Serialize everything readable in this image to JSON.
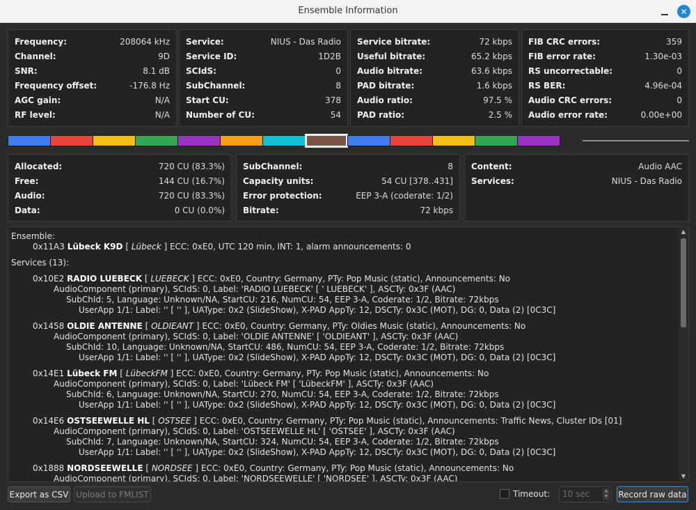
{
  "window": {
    "title": "Ensemble Information"
  },
  "signal": [
    {
      "k": "Frequency:",
      "v": "208064 kHz"
    },
    {
      "k": "Channel:",
      "v": "9D"
    },
    {
      "k": "SNR:",
      "v": "8.1 dB"
    },
    {
      "k": "Frequency offset:",
      "v": "-176.8 Hz"
    },
    {
      "k": "AGC gain:",
      "v": "N/A"
    },
    {
      "k": "RF level:",
      "v": "N/A"
    }
  ],
  "service": [
    {
      "k": "Service:",
      "v": "NIUS - Das Radio"
    },
    {
      "k": "Service ID:",
      "v": "1D2B"
    },
    {
      "k": "SCIdS:",
      "v": "0"
    },
    {
      "k": "SubChannel:",
      "v": "8"
    },
    {
      "k": "Start CU:",
      "v": "378"
    },
    {
      "k": "Number of CU:",
      "v": "54"
    }
  ],
  "bitrate": [
    {
      "k": "Service bitrate:",
      "v": "72 kbps"
    },
    {
      "k": "Useful bitrate:",
      "v": "65.2 kbps"
    },
    {
      "k": "Audio bitrate:",
      "v": "63.6 kbps"
    },
    {
      "k": "PAD bitrate:",
      "v": "1.6 kbps"
    },
    {
      "k": "Audio ratio:",
      "v": "97.5 %"
    },
    {
      "k": "PAD ratio:",
      "v": "2.5 %"
    }
  ],
  "errors": [
    {
      "k": "FIB CRC errors:",
      "v": "359"
    },
    {
      "k": "FIB error rate:",
      "v": "1.30e-03"
    },
    {
      "k": "RS uncorrectable:",
      "v": "0"
    },
    {
      "k": "RS BER:",
      "v": "4.96e-04"
    },
    {
      "k": "Audio CRC errors:",
      "v": "0"
    },
    {
      "k": "Audio error rate:",
      "v": "0.00e+00"
    }
  ],
  "subchannel_bar": {
    "segments": [
      {
        "color": "#3d7ff0",
        "selected": false
      },
      {
        "color": "#e8453c",
        "selected": false
      },
      {
        "color": "#f6bd16",
        "selected": false
      },
      {
        "color": "#33a853",
        "selected": false
      },
      {
        "color": "#9c31c4",
        "selected": false
      },
      {
        "color": "#f79d17",
        "selected": false
      },
      {
        "color": "#13bfd8",
        "selected": false
      },
      {
        "color": "#7a5647",
        "selected": true
      },
      {
        "color": "#3d7ff0",
        "selected": false
      },
      {
        "color": "#e8453c",
        "selected": false
      },
      {
        "color": "#f6bd16",
        "selected": false
      },
      {
        "color": "#33a853",
        "selected": false
      },
      {
        "color": "#9c31c4",
        "selected": false
      }
    ],
    "free_color": "#8a8a8a"
  },
  "capacity": [
    {
      "k": "Allocated:",
      "v": "720 CU (83.3%)"
    },
    {
      "k": "Free:",
      "v": "144 CU (16.7%)"
    },
    {
      "k": "Audio:",
      "v": "720 CU (83.3%)"
    },
    {
      "k": "Data:",
      "v": "0 CU (0.0%)"
    }
  ],
  "subchannel": [
    {
      "k": "SubChannel:",
      "v": "8"
    },
    {
      "k": "Capacity units:",
      "v": "54 CU [378..431]"
    },
    {
      "k": "Error protection:",
      "v": "EEP 3-A (coderate: 1/2)"
    },
    {
      "k": "Bitrate:",
      "v": "72 kbps"
    }
  ],
  "content": [
    {
      "k": "Content:",
      "v": "Audio AAC"
    },
    {
      "k": "Services:",
      "v": "NIUS - Das Radio"
    }
  ],
  "log": {
    "ensemble_header": "Ensemble:",
    "ensemble_id": "0x11A3",
    "ensemble_name": "Lübeck K9D",
    "ensemble_short": "Lübeck",
    "ensemble_rest": "ECC: 0xE0, UTC 120 min, INT: 1, alarm announcements: 0",
    "services_header": "Services (13):",
    "services": [
      {
        "id": "0x10E2",
        "name": "RADIO LUEBECK",
        "short": "LUEBECK",
        "rest": "ECC: 0xE0, Country: Germany, PTy: Pop Music (static), Announcements: No",
        "component": "AudioComponent (primary), SCIdS: 0, Label: 'RADIO LUEBECK' [ ' LUEBECK' ], ASCTy: 0x3F (AAC)",
        "subch": "SubChId: 5, Language: Unknown/NA, StartCU: 216, NumCU: 54, EEP 3-A, Coderate: 1/2, Bitrate: 72kbps",
        "userapp": "UserApp 1/1: Label: '' [ '' ], UAType: 0x2 (SlideShow), X-PAD AppTy: 12, DSCTy: 0x3C (MOT), DG: 0, Data (2) [0C3C]"
      },
      {
        "id": "0x1458",
        "name": "OLDIE ANTENNE",
        "short": "OLDIEANT",
        "rest": "ECC: 0xE0, Country: Germany, PTy: Oldies Music (static), Announcements: No",
        "component": "AudioComponent (primary), SCIdS: 0, Label: 'OLDIE ANTENNE' [ 'OLDIEANT' ], ASCTy: 0x3F (AAC)",
        "subch": "SubChId: 10, Language: Unknown/NA, StartCU: 486, NumCU: 54, EEP 3-A, Coderate: 1/2, Bitrate: 72kbps",
        "userapp": "UserApp 1/1: Label: '' [ '' ], UAType: 0x2 (SlideShow), X-PAD AppTy: 12, DSCTy: 0x3C (MOT), DG: 0, Data (2) [0C3C]"
      },
      {
        "id": "0x14E1",
        "name": "Lübeck FM",
        "short": "LübeckFM",
        "rest": "ECC: 0xE0, Country: Germany, PTy: Pop Music (static), Announcements: No",
        "component": "AudioComponent (primary), SCIdS: 0, Label: 'Lübeck FM' [ 'LübeckFM' ], ASCTy: 0x3F (AAC)",
        "subch": "SubChId: 6, Language: Unknown/NA, StartCU: 270, NumCU: 54, EEP 3-A, Coderate: 1/2, Bitrate: 72kbps",
        "userapp": "UserApp 1/1: Label: '' [ '' ], UAType: 0x2 (SlideShow), X-PAD AppTy: 12, DSCTy: 0x3C (MOT), DG: 0, Data (2) [0C3C]"
      },
      {
        "id": "0x14E6",
        "name": "OSTSEEWELLE HL",
        "short": "OSTSEE",
        "rest": "ECC: 0xE0, Country: Germany, PTy: Pop Music (static), Announcements: Traffic News, Cluster IDs [01]",
        "component": "AudioComponent (primary), SCIdS: 0, Label: 'OSTSEEWELLE HL' [ 'OSTSEE' ], ASCTy: 0x3F (AAC)",
        "subch": "SubChId: 7, Language: Unknown/NA, StartCU: 324, NumCU: 54, EEP 3-A, Coderate: 1/2, Bitrate: 72kbps",
        "userapp": "UserApp 1/1: Label: '' [ '' ], UAType: 0x2 (SlideShow), X-PAD AppTy: 12, DSCTy: 0x3C (MOT), DG: 0, Data (2) [0C3C]"
      },
      {
        "id": "0x1888",
        "name": "NORDSEEWELLE",
        "short": "NORDSEE",
        "rest": "ECC: 0xE0, Country: Germany, PTy: Pop Music (static), Announcements: No",
        "component": "AudioComponent (primary), SCIdS: 0, Label: 'NORDSEEWELLE' [ 'NORDSEE' ], ASCTy: 0x3F (AAC)"
      }
    ]
  },
  "footer": {
    "export_csv": "Export as CSV",
    "upload_fmlist": "Upload to FMLIST",
    "timeout_label": "Timeout:",
    "timeout_value": "10 sec",
    "record_raw": "Record raw data"
  }
}
